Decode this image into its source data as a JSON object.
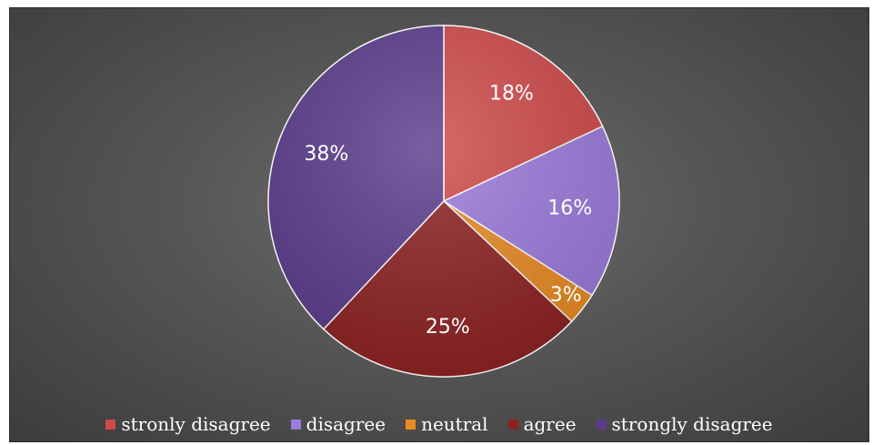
{
  "chart_data": {
    "type": "pie",
    "categories": [
      "stronly disagree",
      "disagree",
      "neutral",
      "agree",
      "strongly disagree"
    ],
    "values": [
      18,
      16,
      3,
      25,
      38
    ],
    "value_labels": [
      "18%",
      "16%",
      "3%",
      "25%",
      "38%"
    ],
    "colors": [
      "#d04a4a",
      "#9b7bdc",
      "#e98b23",
      "#8e2222",
      "#5b3c8c"
    ],
    "start_angle_deg": 0,
    "direction": "clockwise",
    "legend_position": "bottom",
    "background": "#555555"
  }
}
